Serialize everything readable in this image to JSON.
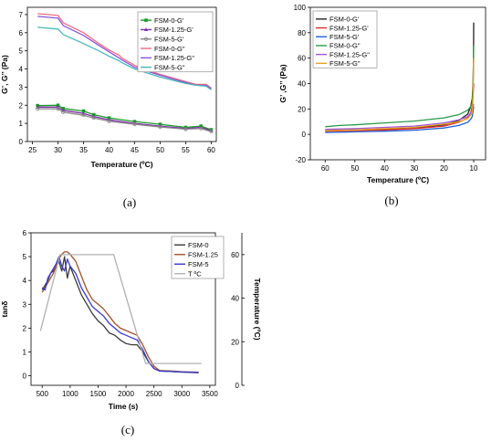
{
  "chart_data": [
    {
      "panel": "(a)",
      "type": "line",
      "xlabel": "Temperature (ºC)",
      "ylabel": "G’, G’’ (Pa)",
      "xlim": [
        24,
        61
      ],
      "ylim": [
        0,
        7.4
      ],
      "xticks": [
        25,
        30,
        35,
        40,
        45,
        50,
        55,
        60
      ],
      "yticks": [
        0,
        1,
        2,
        3,
        4,
        5,
        6,
        7
      ],
      "legend_position": "top-right",
      "series": [
        {
          "name": "FSM-0-G'",
          "color": "#1a9a28",
          "marker": "square",
          "x": [
            26,
            30,
            31,
            35,
            37,
            40,
            45,
            50,
            55,
            58,
            60
          ],
          "y": [
            1.98,
            2.0,
            1.82,
            1.68,
            1.48,
            1.3,
            1.1,
            0.95,
            0.78,
            0.85,
            0.65
          ]
        },
        {
          "name": "FSM-1.25-G'",
          "color": "#7d2ea8",
          "marker": "triangle",
          "x": [
            26,
            30,
            31,
            35,
            37,
            40,
            45,
            50,
            55,
            58,
            60
          ],
          "y": [
            1.9,
            1.9,
            1.72,
            1.55,
            1.38,
            1.2,
            1.0,
            0.85,
            0.72,
            0.78,
            0.6
          ]
        },
        {
          "name": "FSM-5-G'",
          "color": "#8a8a8a",
          "marker": "circle",
          "x": [
            26,
            30,
            31,
            35,
            37,
            40,
            45,
            50,
            55,
            58,
            60
          ],
          "y": [
            1.8,
            1.8,
            1.62,
            1.45,
            1.3,
            1.12,
            0.95,
            0.8,
            0.68,
            0.72,
            0.55
          ]
        },
        {
          "name": "FSM-0-G\"",
          "color": "#f06b82",
          "marker": "none",
          "x": [
            26,
            30,
            31,
            35,
            38,
            40,
            42,
            42.5,
            45,
            50,
            55,
            57,
            59,
            60
          ],
          "y": [
            7.05,
            6.95,
            6.55,
            6.0,
            5.4,
            5.05,
            4.75,
            4.6,
            4.2,
            3.7,
            3.3,
            3.15,
            3.15,
            2.95
          ]
        },
        {
          "name": "FSM-1.25-G\"",
          "color": "#8b55d8",
          "marker": "none",
          "x": [
            26,
            30,
            31,
            35,
            38,
            40,
            42,
            42.5,
            45,
            50,
            55,
            57,
            59,
            60
          ],
          "y": [
            6.9,
            6.8,
            6.4,
            5.85,
            5.3,
            4.95,
            4.6,
            4.5,
            4.1,
            3.65,
            3.25,
            3.1,
            3.1,
            2.9
          ]
        },
        {
          "name": "FSM-5-G\"",
          "color": "#48b8b8",
          "marker": "none",
          "x": [
            26,
            30,
            31,
            35,
            38,
            40,
            42,
            42.5,
            45,
            50,
            55,
            57,
            59,
            60
          ],
          "y": [
            6.3,
            6.2,
            5.9,
            5.4,
            5.0,
            4.7,
            4.45,
            4.35,
            4.0,
            3.55,
            3.2,
            3.1,
            3.05,
            2.85
          ]
        }
      ]
    },
    {
      "panel": "(b)",
      "type": "line",
      "xlabel": "Temperature (ºC)",
      "ylabel": "G’ ,G’’ (Pa)",
      "xlim": [
        65,
        6
      ],
      "ylim": [
        -20,
        100
      ],
      "xticks": [
        60,
        50,
        40,
        30,
        20,
        10
      ],
      "yticks": [
        -20,
        0,
        20,
        40,
        60,
        80,
        100
      ],
      "legend_position": "top-left",
      "series": [
        {
          "name": "FSM-0-G'",
          "color": "#222222",
          "x": [
            60,
            50,
            40,
            30,
            20,
            15,
            12,
            11,
            10.5,
            10.2,
            10.05,
            10.0
          ],
          "y": [
            3,
            3.5,
            4,
            5,
            7.5,
            11,
            16,
            22,
            28,
            40,
            60,
            88
          ]
        },
        {
          "name": "FSM-1.25-G'",
          "color": "#e02828",
          "x": [
            60,
            50,
            40,
            30,
            20,
            15,
            12,
            11,
            10.5,
            10.2,
            10.0
          ],
          "y": [
            2.5,
            3,
            3.5,
            4.5,
            6.5,
            9.5,
            13,
            17,
            22,
            30,
            40
          ]
        },
        {
          "name": "FSM-5-G'",
          "color": "#2060d8",
          "x": [
            60,
            50,
            40,
            30,
            20,
            15,
            12,
            11,
            10.5,
            10.2,
            10.0
          ],
          "y": [
            1.5,
            2,
            2.5,
            3.3,
            5,
            7,
            9.5,
            12,
            14,
            18,
            22
          ]
        },
        {
          "name": "FSM-0-G\"",
          "color": "#2a9a4a",
          "x": [
            60,
            55,
            50,
            40,
            30,
            20,
            15,
            12,
            11,
            10.5,
            10.2,
            10.0
          ],
          "y": [
            6,
            7,
            7.5,
            9,
            10.5,
            13,
            15.5,
            19,
            22,
            25,
            35,
            70
          ]
        },
        {
          "name": "FSM-1.25-G\"",
          "color": "#a055d8",
          "x": [
            60,
            50,
            40,
            30,
            20,
            15,
            12,
            11,
            10.5,
            10.2,
            10.0
          ],
          "y": [
            4,
            4.5,
            5.5,
            6.5,
            9,
            11.5,
            14,
            17,
            19,
            22,
            24
          ]
        },
        {
          "name": "FSM-5-G\"",
          "color": "#e8a020",
          "x": [
            60,
            50,
            40,
            30,
            20,
            15,
            12,
            11,
            10.5,
            10.2,
            10.0
          ],
          "y": [
            3,
            3.5,
            4.5,
            5.5,
            8,
            10,
            12.5,
            15,
            17,
            30,
            60
          ]
        }
      ]
    },
    {
      "panel": "(c)",
      "type": "line",
      "xlabel": "Time (s)",
      "ylabel": "tanδ",
      "y2label": "Temperature (ºC)",
      "xlim": [
        300,
        3600
      ],
      "ylim": [
        -0.4,
        6
      ],
      "y2lim": [
        0,
        70
      ],
      "xticks": [
        500,
        1000,
        1500,
        2000,
        2500,
        3000,
        3500
      ],
      "yticks": [
        0,
        1,
        2,
        3,
        4,
        5,
        6
      ],
      "y2ticks": [
        0,
        20,
        40,
        60
      ],
      "legend_position": "top-right",
      "series": [
        {
          "name": "FSM-0",
          "color": "#3a3a3a",
          "axis": "left",
          "x": [
            500,
            550,
            600,
            650,
            700,
            750,
            800,
            850,
            900,
            950,
            1000,
            1100,
            1200,
            1300,
            1400,
            1500,
            1600,
            1700,
            1800,
            1900,
            2000,
            2100,
            2200,
            2300,
            2400,
            2500,
            2600,
            2800,
            3000,
            3300
          ],
          "y": [
            3.6,
            3.8,
            4.0,
            4.3,
            4.4,
            4.6,
            4.8,
            4.4,
            5.0,
            4.1,
            4.6,
            4.0,
            3.4,
            3.0,
            2.6,
            2.3,
            2.1,
            1.8,
            1.7,
            1.5,
            1.35,
            1.3,
            1.3,
            1.0,
            0.6,
            0.3,
            0.2,
            0.18,
            0.15,
            0.13
          ]
        },
        {
          "name": "FSM-1.25",
          "color": "#a0522d",
          "axis": "left",
          "x": [
            500,
            550,
            600,
            650,
            700,
            750,
            800,
            850,
            900,
            950,
            1000,
            1100,
            1200,
            1300,
            1400,
            1500,
            1600,
            1700,
            1800,
            1900,
            2000,
            2100,
            2200,
            2300,
            2400,
            2500,
            2600,
            2800,
            3000,
            3300
          ],
          "y": [
            3.5,
            3.7,
            3.9,
            4.1,
            4.3,
            4.6,
            4.9,
            5.1,
            5.2,
            5.2,
            5.1,
            4.8,
            4.2,
            3.6,
            3.2,
            3.0,
            2.8,
            2.5,
            2.2,
            2.0,
            1.9,
            1.8,
            1.7,
            1.3,
            0.8,
            0.4,
            0.22,
            0.2,
            0.17,
            0.15
          ]
        },
        {
          "name": "FSM-5",
          "color": "#3a3ad0",
          "axis": "left",
          "x": [
            500,
            550,
            600,
            650,
            700,
            750,
            800,
            850,
            900,
            950,
            1000,
            1100,
            1200,
            1300,
            1400,
            1500,
            1600,
            1700,
            1800,
            1900,
            2000,
            2100,
            2200,
            2300,
            2400,
            2500,
            2600,
            2800,
            3000,
            3300
          ],
          "y": [
            3.7,
            3.6,
            4.1,
            4.3,
            4.5,
            4.7,
            5.0,
            4.6,
            4.4,
            4.9,
            4.6,
            4.3,
            3.7,
            3.3,
            2.9,
            2.7,
            2.5,
            2.2,
            2.0,
            1.8,
            1.7,
            1.6,
            1.5,
            1.1,
            0.6,
            0.3,
            0.2,
            0.18,
            0.16,
            0.14
          ]
        },
        {
          "name": "T ºC",
          "color": "#b0b0b0",
          "axis": "right",
          "x": [
            470,
            820,
            1780,
            2350,
            3350
          ],
          "y": [
            25,
            60,
            60,
            10,
            10
          ]
        }
      ]
    }
  ],
  "captions": {
    "a": "(a)",
    "b": "(b)",
    "c": "(c)"
  }
}
